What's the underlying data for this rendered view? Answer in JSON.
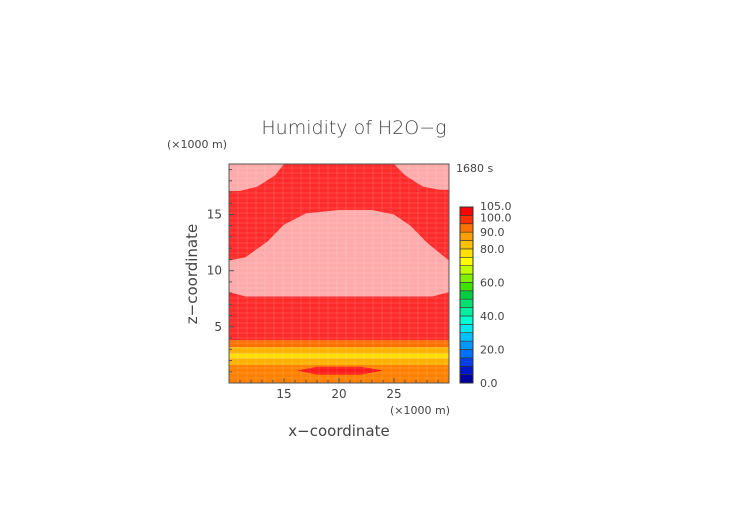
{
  "chart_data": {
    "type": "heatmap",
    "title": "Humidity of H2O−g",
    "xlabel": "x−coordinate",
    "ylabel": "z−coordinate",
    "x_unit": "(×1000 m)",
    "y_unit": "(×1000 m)",
    "time_label": "1680 s",
    "xlim": [
      10,
      30
    ],
    "ylim": [
      0,
      19.5
    ],
    "x_ticks": [
      15,
      20,
      25
    ],
    "y_ticks": [
      5,
      10,
      15
    ],
    "colorbar": {
      "levels": [
        0,
        5,
        10,
        15,
        20,
        25,
        30,
        35,
        40,
        45,
        50,
        55,
        60,
        65,
        70,
        75,
        80,
        85,
        90,
        95,
        100,
        105
      ],
      "labels": [
        "0.0",
        "20.0",
        "40.0",
        "60.0",
        "80.0",
        "90.0",
        "100.0",
        "105.0"
      ],
      "label_values": [
        0,
        20,
        40,
        60,
        80,
        90,
        100,
        105
      ],
      "colors": [
        "#0000a0",
        "#0018c8",
        "#0040e8",
        "#0070ff",
        "#0098ff",
        "#00c0ff",
        "#00e8f0",
        "#00ffd0",
        "#00f0a0",
        "#00e070",
        "#00d040",
        "#40e000",
        "#80f000",
        "#c0ff00",
        "#ffff00",
        "#ffe000",
        "#ffc000",
        "#ffa000",
        "#ff7000",
        "#ff3000",
        "#ff0000",
        "#ffffff"
      ]
    },
    "regions": [
      {
        "name": "moist-layer",
        "value": 97,
        "color": "#ff2a2a",
        "shape": "band",
        "z": [
          3.8,
          19.5
        ]
      },
      {
        "name": "upper-saturated-cloud",
        "value": 102,
        "color": "#ffaaaa",
        "shape": "polygon",
        "points": [
          [
            10,
            8.1
          ],
          [
            11.5,
            7.7
          ],
          [
            28.5,
            7.7
          ],
          [
            30,
            8.1
          ],
          [
            30,
            10.9
          ],
          [
            28,
            12.5
          ],
          [
            26.5,
            14
          ],
          [
            25,
            15
          ],
          [
            23,
            15.4
          ],
          [
            20,
            15.4
          ],
          [
            17,
            15.1
          ],
          [
            15,
            14.1
          ],
          [
            13.5,
            12.6
          ],
          [
            11.5,
            11.2
          ],
          [
            10,
            10.9
          ]
        ]
      },
      {
        "name": "top-left-cloud",
        "value": 102,
        "color": "#ffaaaa",
        "shape": "polygon",
        "points": [
          [
            10,
            19.5
          ],
          [
            15,
            19.5
          ],
          [
            14.2,
            18.5
          ],
          [
            12.6,
            17.5
          ],
          [
            11,
            17.1
          ],
          [
            10,
            17.1
          ]
        ]
      },
      {
        "name": "top-right-cloud",
        "value": 102,
        "color": "#ffaaaa",
        "shape": "polygon",
        "points": [
          [
            30,
            19.5
          ],
          [
            25,
            19.5
          ],
          [
            26,
            18.5
          ],
          [
            27.6,
            17.5
          ],
          [
            29.1,
            17.2
          ],
          [
            30,
            17.2
          ]
        ]
      },
      {
        "name": "lower-band-1",
        "value": 90,
        "color": "#ff7000",
        "shape": "band",
        "z": [
          3.2,
          3.8
        ]
      },
      {
        "name": "lower-band-2",
        "value": 82,
        "color": "#ffb000",
        "shape": "band",
        "z": [
          2.6,
          3.2
        ]
      },
      {
        "name": "lower-band-3",
        "value": 75,
        "color": "#ffe000",
        "shape": "band",
        "z": [
          2.2,
          2.6
        ]
      },
      {
        "name": "lower-band-4",
        "value": 82,
        "color": "#ffb000",
        "shape": "band",
        "z": [
          1.6,
          2.2
        ]
      },
      {
        "name": "lower-band-5",
        "value": 90,
        "color": "#ff8000",
        "shape": "band",
        "z": [
          0,
          1.6
        ]
      },
      {
        "name": "near-surface-saturated",
        "value": 98,
        "color": "#ff1a1a",
        "shape": "polygon",
        "points": [
          [
            16.2,
            1.1
          ],
          [
            18,
            1.45
          ],
          [
            22,
            1.45
          ],
          [
            24,
            1.1
          ],
          [
            22,
            0.75
          ],
          [
            18,
            0.75
          ]
        ]
      }
    ]
  }
}
